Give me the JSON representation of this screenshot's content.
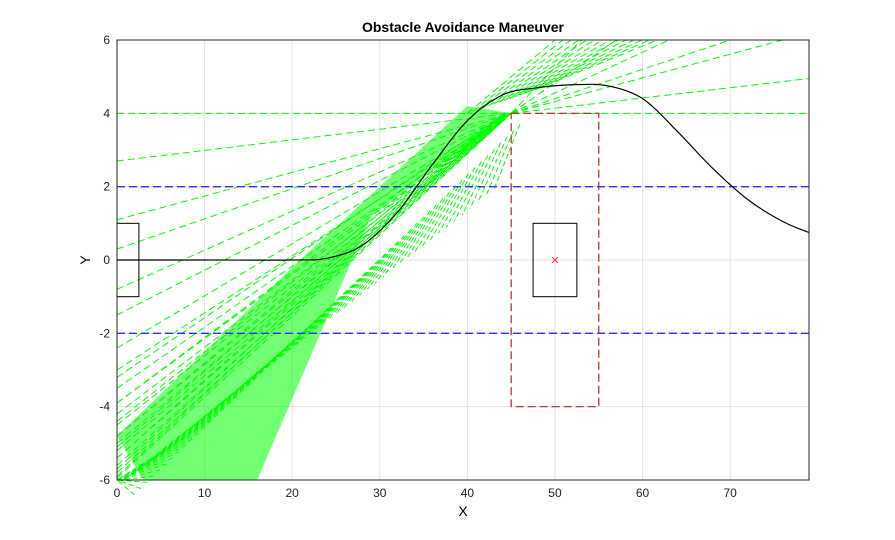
{
  "chart_data": {
    "type": "line",
    "title": "Obstacle Avoidance Maneuver",
    "xlabel": "X",
    "ylabel": "Y",
    "xlim": [
      0,
      79
    ],
    "ylim": [
      -6,
      6
    ],
    "xticks": [
      0,
      10,
      20,
      30,
      40,
      50,
      60,
      70
    ],
    "yticks": [
      -6,
      -4,
      -2,
      0,
      2,
      4,
      6
    ],
    "grid": true,
    "colors": {
      "path": "#000000",
      "lanes": "#2b2bff",
      "rays": "#00ff00",
      "safety_box": "#b22222",
      "obstacle_center": "#ff3333"
    },
    "vehicle_path": {
      "x": [
        0,
        10,
        20,
        24,
        28,
        32,
        36,
        40,
        44,
        48,
        52,
        56,
        60,
        64,
        68,
        72,
        76,
        79
      ],
      "y": [
        0,
        0,
        0,
        0.05,
        0.4,
        1.3,
        2.6,
        3.8,
        4.5,
        4.7,
        4.78,
        4.75,
        4.4,
        3.5,
        2.5,
        1.65,
        1.05,
        0.75
      ]
    },
    "lane_boundaries": [
      2,
      -2
    ],
    "rays": {
      "y_ref_lines": [
        4,
        -6
      ],
      "fans": [
        {
          "pivot": [
            45,
            4
          ],
          "start_y": [
            2.7,
            1.1,
            0.3,
            -0.8,
            -1.5,
            -2.4,
            -3.0,
            -3.5,
            -3.9,
            -4.2,
            -4.5,
            -4.8,
            -5.0,
            -5.2,
            -5.4,
            -5.6,
            -5.8,
            -5.95
          ]
        },
        {
          "pivot": [
            44,
            3.95
          ],
          "start_y": [
            -3.2,
            -3.9,
            -4.4,
            -4.8,
            -5.1,
            -5.4,
            -5.7,
            -5.9
          ]
        }
      ],
      "upper_lines": [
        {
          "from": [
            45,
            4
          ],
          "to": [
            79,
            4.95
          ]
        },
        {
          "from": [
            45,
            4
          ],
          "to": [
            76,
            6
          ]
        },
        {
          "from": [
            45,
            4
          ],
          "to": [
            70,
            6
          ]
        },
        {
          "from": [
            45,
            4
          ],
          "to": [
            63,
            6
          ]
        },
        {
          "from": [
            45,
            4
          ],
          "to": [
            57,
            6
          ]
        },
        {
          "from": [
            45,
            4
          ],
          "to": [
            53,
            6
          ]
        }
      ],
      "band": [
        [
          3,
          -6
        ],
        [
          16,
          -6
        ],
        [
          29,
          1.2
        ],
        [
          45,
          4
        ],
        [
          40,
          4.2
        ],
        [
          20,
          -0.2
        ],
        [
          0,
          -4.8
        ]
      ]
    },
    "vehicle_box": {
      "x": [
        0,
        2.5
      ],
      "y": [
        -1,
        1
      ]
    },
    "obstacle_box": {
      "x": [
        47.5,
        52.5
      ],
      "y": [
        -1,
        1
      ]
    },
    "obstacle_center": [
      50,
      0
    ],
    "safety_box": {
      "x": [
        45,
        55
      ],
      "y": [
        -4,
        4
      ]
    }
  }
}
